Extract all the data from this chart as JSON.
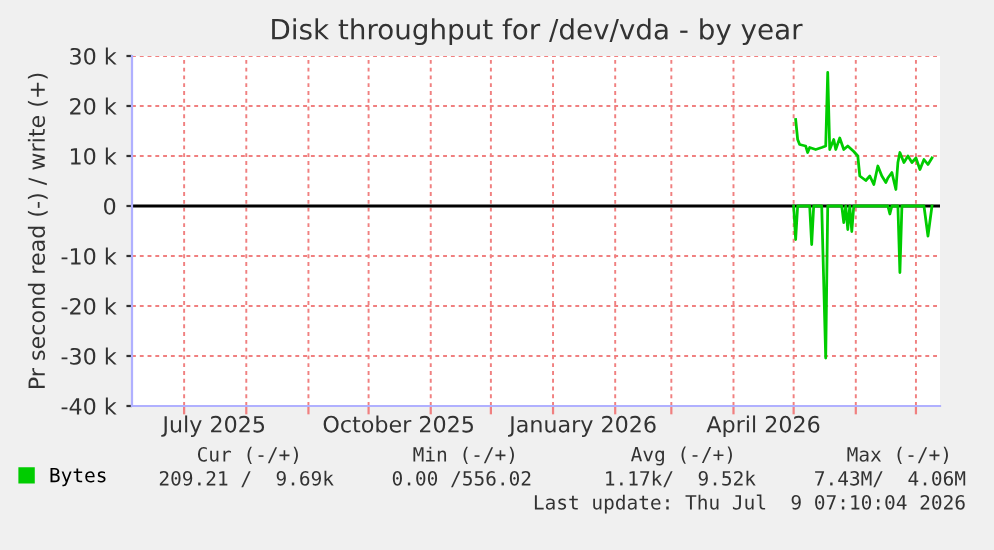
{
  "chart_data": {
    "type": "line",
    "title": "Disk throughput for /dev/vda - by year",
    "ylabel": "Pr second read (-) / write (+)",
    "xlim": [
      "2025-06-05",
      "2026-07-13"
    ],
    "xticks": [
      {
        "value": "2025-07-01",
        "label": null
      },
      {
        "value": "2025-07-16",
        "label": "July 2025"
      },
      {
        "value": "2025-08-01",
        "label": null
      },
      {
        "value": "2025-09-01",
        "label": null
      },
      {
        "value": "2025-10-01",
        "label": null
      },
      {
        "value": "2025-10-16",
        "label": "October 2025"
      },
      {
        "value": "2025-11-01",
        "label": null
      },
      {
        "value": "2025-12-01",
        "label": null
      },
      {
        "value": "2026-01-01",
        "label": null
      },
      {
        "value": "2026-01-16",
        "label": "January 2026"
      },
      {
        "value": "2026-02-01",
        "label": null
      },
      {
        "value": "2026-03-01",
        "label": null
      },
      {
        "value": "2026-04-01",
        "label": null
      },
      {
        "value": "2026-04-16",
        "label": "April 2026"
      },
      {
        "value": "2026-05-01",
        "label": null
      },
      {
        "value": "2026-06-01",
        "label": null
      },
      {
        "value": "2026-07-01",
        "label": null
      }
    ],
    "ylim": [
      -40000,
      30000
    ],
    "yticks": [
      {
        "value": -40000,
        "label": "-40 k"
      },
      {
        "value": -30000,
        "label": "-30 k"
      },
      {
        "value": -20000,
        "label": "-20 k"
      },
      {
        "value": -10000,
        "label": "-10 k"
      },
      0,
      {
        "value": 10000,
        "label": "10 k"
      },
      {
        "value": 20000,
        "label": "20 k"
      },
      {
        "value": 30000,
        "label": "30 k"
      }
    ],
    "grid": true,
    "legend": "bottom left",
    "ref_lines": [
      {
        "axis": "y",
        "value": 0,
        "color": "#000000"
      }
    ],
    "series": [
      {
        "name": "Bytes",
        "color": "#00cc00",
        "x": [
          "2026-05-02",
          "2026-05-03",
          "2026-05-04",
          "2026-05-07",
          "2026-05-08",
          "2026-05-09",
          "2026-05-12",
          "2026-05-15",
          "2026-05-17",
          "2026-05-18",
          "2026-05-19",
          "2026-05-21",
          "2026-05-22",
          "2026-05-24",
          "2026-05-26",
          "2026-05-28",
          "2026-05-31",
          "2026-06-02",
          "2026-06-03",
          "2026-06-06",
          "2026-06-08",
          "2026-06-10",
          "2026-06-12",
          "2026-06-14",
          "2026-06-16",
          "2026-06-17",
          "2026-06-19",
          "2026-06-21",
          "2026-06-22",
          "2026-06-23",
          "2026-06-25",
          "2026-06-27",
          "2026-06-29",
          "2026-07-01",
          "2026-07-03",
          "2026-07-05",
          "2026-07-07",
          "2026-07-09"
        ],
        "values": [
          17300,
          13300,
          12300,
          12000,
          10700,
          11700,
          11300,
          11700,
          12000,
          26700,
          11300,
          13300,
          11300,
          13600,
          11300,
          12000,
          10900,
          10000,
          6000,
          5100,
          6000,
          4300,
          8000,
          6000,
          4700,
          5600,
          6700,
          3300,
          8700,
          10700,
          8700,
          10000,
          8700,
          9600,
          7300,
          9300,
          8300,
          9600
        ]
      },
      {
        "color": "#00cc00",
        "x": [
          "2026-05-01",
          "2026-05-02",
          "2026-05-03",
          "2026-05-09",
          "2026-05-10",
          "2026-05-11",
          "2026-05-15",
          "2026-05-17",
          "2026-05-18",
          "2026-05-25",
          "2026-05-26",
          "2026-05-27",
          "2026-05-28",
          "2026-05-29",
          "2026-05-30",
          "2026-05-31",
          "2026-06-17",
          "2026-06-18",
          "2026-06-19",
          "2026-06-22",
          "2026-06-23",
          "2026-06-24",
          "2026-07-05",
          "2026-07-07",
          "2026-07-09"
        ],
        "values": [
          0,
          -6700,
          0,
          0,
          -7700,
          0,
          0,
          -30400,
          0,
          0,
          -3300,
          0,
          -4700,
          0,
          -5100,
          0,
          0,
          -1600,
          0,
          0,
          -13300,
          0,
          0,
          -6000,
          0
        ]
      }
    ],
    "annotations": [
      "Cur (-/+)",
      "Min (-/+)",
      "Avg (-/+)",
      "Max (-/+)",
      "209.21 /  9.69k",
      "0.00 /556.02",
      "1.17k/  9.52k",
      "7.43M/  4.06M",
      "Last update: Thu Jul  9 07:10:04 2026"
    ]
  }
}
